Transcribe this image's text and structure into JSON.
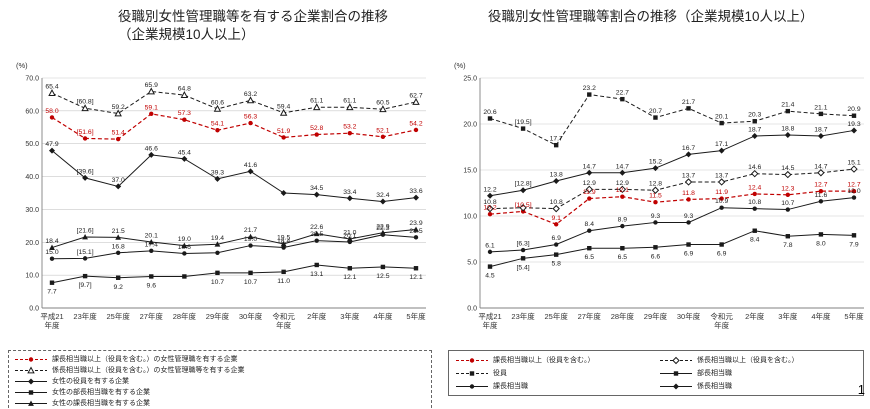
{
  "page": {
    "number": "1"
  },
  "colors": {
    "accent_red": "#c00000",
    "line_black": "#1a1a1a",
    "grid": "#c9c9c9",
    "text": "#333333"
  },
  "chart_data": [
    {
      "type": "line",
      "title": "役職別女性管理職等を有する企業割合の推移",
      "subtitle": "（企業規模10人以上）",
      "unit": "(%)",
      "xlabel": "年度",
      "ylim": [
        0,
        70
      ],
      "ytick": 10,
      "grid": true,
      "legend_position": "bottom",
      "categories": [
        "平成21\n年度",
        "23年度",
        "25年度",
        "27年度",
        "28年度",
        "29年度",
        "30年度",
        "令和元\n年度",
        "2年度",
        "3年度",
        "4年度",
        "5年度"
      ],
      "series": [
        {
          "name": "課長相当職以上（役員を含む。）の女性管理職を有する企業",
          "color": "#c00000",
          "line": "dashed",
          "marker": "circle",
          "label_side": "above",
          "values": [
            58.0,
            51.6,
            51.4,
            59.1,
            57.3,
            54.1,
            56.3,
            51.9,
            52.8,
            53.2,
            52.1,
            54.2
          ],
          "labels": [
            "58.0",
            "[51.6]",
            "51.4",
            "59.1",
            "57.3",
            "54.1",
            "56.3",
            "51.9",
            "52.8",
            "53.2",
            "52.1",
            "54.2"
          ]
        },
        {
          "name": "係長相当職以上（役員を含む。）の女性管理職等を有する企業",
          "color": "#1a1a1a",
          "line": "dashed",
          "marker": "triangle-open",
          "label_side": "above",
          "values": [
            65.4,
            60.8,
            59.2,
            65.9,
            64.8,
            60.6,
            63.2,
            59.4,
            61.1,
            61.1,
            60.5,
            62.7
          ],
          "labels": [
            "65.4",
            "[60.8]",
            "59.2",
            "65.9",
            "64.8",
            "60.6",
            "63.2",
            "59.4",
            "61.1",
            "61.1",
            "60.5",
            "62.7"
          ]
        },
        {
          "name": "女性の役員を有する企業",
          "color": "#1a1a1a",
          "line": "solid",
          "marker": "diamond",
          "label_side": "above",
          "values": [
            47.9,
            39.6,
            37.0,
            46.6,
            45.4,
            39.3,
            41.6,
            35.0,
            34.5,
            33.4,
            32.4,
            33.6
          ],
          "labels": [
            "47.9",
            "[39.6]",
            "37.0",
            "46.6",
            "45.4",
            "39.3",
            "41.6",
            "",
            "34.5",
            "33.4",
            "32.4",
            "33.6"
          ]
        },
        {
          "name": "女性の部長相当職を有する企業",
          "color": "#1a1a1a",
          "line": "solid",
          "marker": "square",
          "label_side": "below",
          "values": [
            7.7,
            9.7,
            9.2,
            9.6,
            9.6,
            10.7,
            10.7,
            11.0,
            13.1,
            12.1,
            12.5,
            12.1
          ],
          "labels": [
            "7.7",
            "[9.7]",
            "9.2",
            "9.6",
            "",
            "10.7",
            "10.7",
            "11.0",
            "13.1",
            "12.1",
            "12.5",
            "12.1"
          ]
        },
        {
          "name": "女性の課長相当職を有する企業",
          "color": "#1a1a1a",
          "line": "solid",
          "marker": "triangle",
          "label_side": "above",
          "values": [
            18.4,
            21.6,
            21.5,
            20.1,
            19.0,
            19.4,
            21.7,
            19.5,
            22.6,
            21.0,
            22.9,
            23.9
          ],
          "labels": [
            "18.4",
            "[21.6]",
            "21.5",
            "20.1",
            "19.0",
            "19.4",
            "21.7",
            "19.5",
            "22.6",
            "21.0",
            "22.9",
            "23.9"
          ]
        },
        {
          "name": "女性の係長相当職を有する企業",
          "color": "#1a1a1a",
          "line": "solid",
          "marker": "circle",
          "label_side": "above",
          "values": [
            15.0,
            15.1,
            16.8,
            17.4,
            16.6,
            16.8,
            19.0,
            18.4,
            20.5,
            20.1,
            22.3,
            21.5
          ],
          "labels": [
            "15.0",
            "[15.1]",
            "16.8",
            "17.4",
            "16.6",
            "",
            "19.0",
            "18.4",
            "20.5",
            "20.1",
            "22.3",
            "21.5"
          ]
        }
      ]
    },
    {
      "type": "line",
      "title": "役職別女性管理職等割合の推移（企業規模10人以上）",
      "subtitle": "",
      "unit": "(%)",
      "xlabel": "年度",
      "ylim": [
        0,
        25
      ],
      "ytick": 5,
      "grid": true,
      "legend_position": "bottom",
      "categories": [
        "平成21\n年度",
        "23年度",
        "25年度",
        "27年度",
        "28年度",
        "29年度",
        "30年度",
        "令和元\n年度",
        "2年度",
        "3年度",
        "4年度",
        "5年度"
      ],
      "series": [
        {
          "name": "課長相当職以上（役員を含む。）",
          "color": "#c00000",
          "line": "dashed",
          "marker": "circle",
          "label_side": "above",
          "values": [
            10.2,
            10.5,
            9.1,
            11.9,
            12.1,
            11.5,
            11.8,
            11.9,
            12.4,
            12.3,
            12.7,
            12.7
          ],
          "labels": [
            "10.2",
            "[10.5]",
            "9.1",
            "11.9",
            "12.1",
            "11.5",
            "11.8",
            "11.9",
            "12.4",
            "12.3",
            "12.7",
            "12.7"
          ]
        },
        {
          "name": "係長相当職以上（役員を含む。）",
          "color": "#1a1a1a",
          "line": "dashed",
          "marker": "diamond-open",
          "label_side": "above",
          "values": [
            10.8,
            10.9,
            10.8,
            12.9,
            12.9,
            12.8,
            13.7,
            13.7,
            14.6,
            14.5,
            14.7,
            15.1
          ],
          "labels": [
            "10.8",
            "",
            "10.8",
            "12.9",
            "12.9",
            "12.8",
            "13.7",
            "13.7",
            "14.6",
            "14.5",
            "14.7",
            "15.1"
          ]
        },
        {
          "name": "役員",
          "color": "#1a1a1a",
          "line": "dashed",
          "marker": "square",
          "label_side": "above",
          "values": [
            20.6,
            19.5,
            17.7,
            23.2,
            22.7,
            20.7,
            21.7,
            20.1,
            20.3,
            21.4,
            21.1,
            20.9
          ],
          "labels": [
            "20.6",
            "[19.5]",
            "17.7",
            "23.2",
            "22.7",
            "20.7",
            "21.7",
            "20.1",
            "20.3",
            "21.4",
            "21.1",
            "20.9"
          ]
        },
        {
          "name": "部長相当職",
          "color": "#1a1a1a",
          "line": "solid",
          "marker": "square",
          "label_side": "below",
          "values": [
            4.5,
            5.4,
            5.8,
            6.5,
            6.5,
            6.6,
            6.9,
            6.9,
            8.4,
            7.8,
            8.0,
            7.9
          ],
          "labels": [
            "4.5",
            "[5.4]",
            "5.8",
            "6.5",
            "6.5",
            "6.6",
            "6.9",
            "6.9",
            "8.4",
            "7.8",
            "8.0",
            "7.9"
          ]
        },
        {
          "name": "課長相当職",
          "color": "#1a1a1a",
          "line": "solid",
          "marker": "circle",
          "label_side": "above",
          "values": [
            6.1,
            6.3,
            6.9,
            8.4,
            8.9,
            9.3,
            9.3,
            10.9,
            10.8,
            10.7,
            11.6,
            12.0
          ],
          "labels": [
            "6.1",
            "[6.3]",
            "6.9",
            "8.4",
            "8.9",
            "9.3",
            "9.3",
            "10.9",
            "10.8",
            "10.7",
            "11.6",
            "12.0"
          ]
        },
        {
          "name": "係長相当職",
          "color": "#1a1a1a",
          "line": "solid",
          "marker": "diamond",
          "label_side": "above",
          "values": [
            12.2,
            12.8,
            13.8,
            14.7,
            14.7,
            15.2,
            16.7,
            17.1,
            18.7,
            18.8,
            18.7,
            19.3
          ],
          "labels": [
            "12.2",
            "[12.8]",
            "13.8",
            "14.7",
            "14.7",
            "15.2",
            "16.7",
            "17.1",
            "18.7",
            "18.8",
            "18.7",
            "19.3"
          ]
        }
      ]
    }
  ]
}
